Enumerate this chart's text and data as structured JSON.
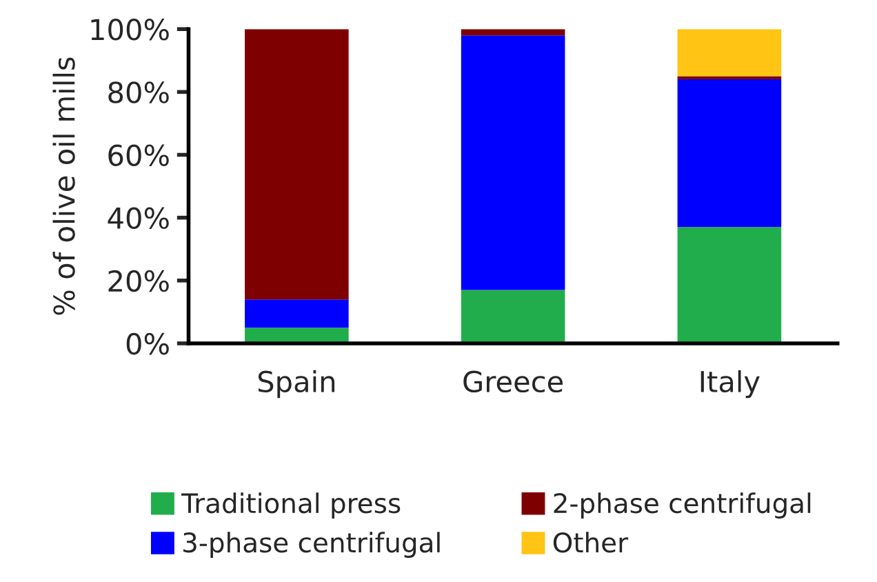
{
  "chart_data": {
    "type": "bar",
    "stacked": true,
    "ylabel": "% of olive oil mills",
    "categories": [
      "Spain",
      "Greece",
      "Italy"
    ],
    "series": [
      {
        "name": "Traditional press",
        "color": "#22ad4c",
        "values": [
          5,
          17,
          37
        ]
      },
      {
        "name": "3-phase centrifugal",
        "color": "#0000ff",
        "values": [
          9,
          81,
          47
        ]
      },
      {
        "name": "2-phase centrifugal",
        "color": "#7f0000",
        "values": [
          86,
          2,
          1
        ]
      },
      {
        "name": "Other",
        "color": "#ffc414",
        "values": [
          0,
          0,
          15
        ]
      }
    ],
    "ylim": [
      0,
      100
    ],
    "yticks": [
      {
        "value": 0,
        "label": "0%"
      },
      {
        "value": 20,
        "label": "20%"
      },
      {
        "value": 40,
        "label": "40%"
      },
      {
        "value": 60,
        "label": "60%"
      },
      {
        "value": 80,
        "label": "80%"
      },
      {
        "value": 100,
        "label": "100%"
      }
    ],
    "grid": false,
    "legend": "bottom"
  }
}
